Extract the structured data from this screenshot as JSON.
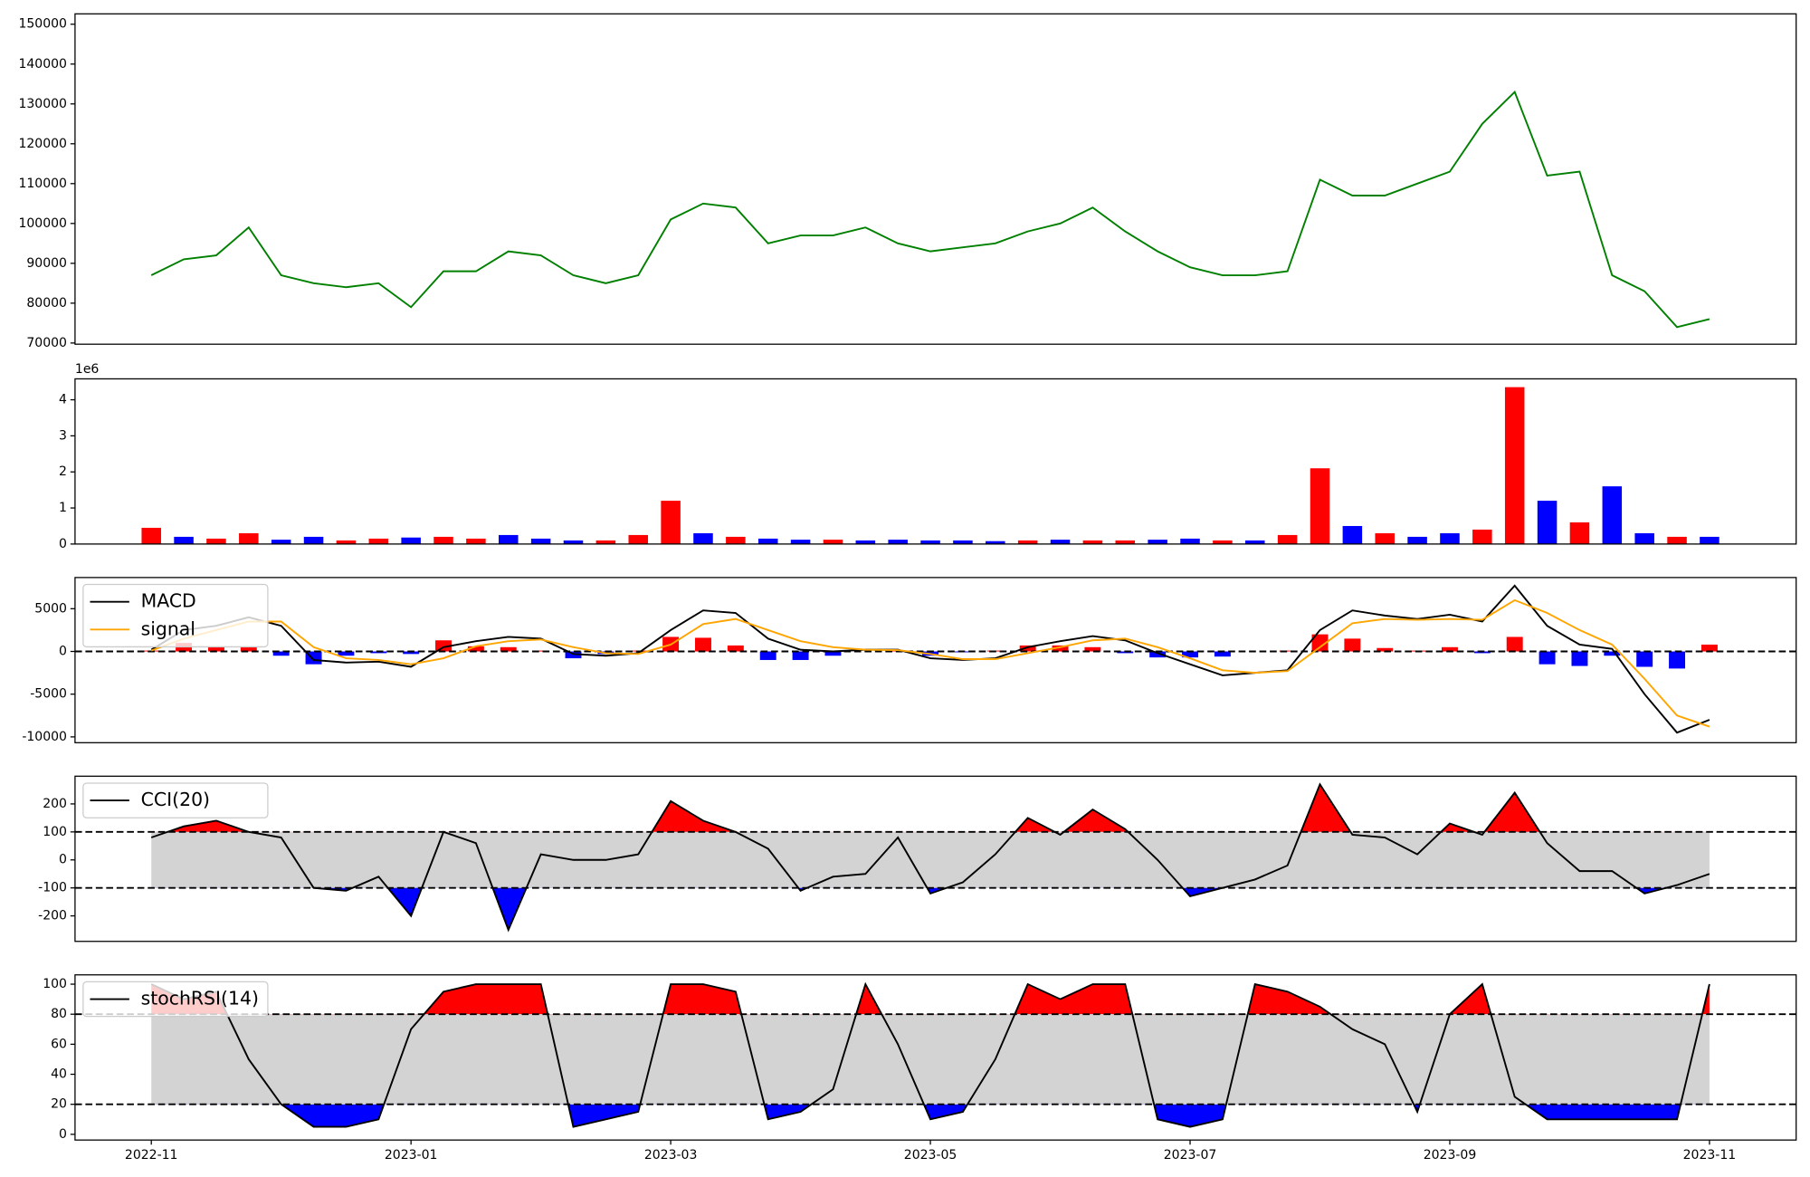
{
  "chart_data": [
    {
      "type": "line",
      "color": "#008000",
      "values": [
        87000,
        91000,
        92000,
        99000,
        87000,
        85000,
        84000,
        85000,
        79000,
        88000,
        88000,
        93000,
        92000,
        87000,
        85000,
        87000,
        101000,
        105000,
        104000,
        95000,
        97000,
        97000,
        99000,
        95000,
        93000,
        94000,
        95000,
        98000,
        100000,
        104000,
        98000,
        93000,
        89000,
        87000,
        87000,
        88000,
        111000,
        107000,
        107000,
        110000,
        113000,
        125000,
        133000,
        112000,
        113000,
        87000,
        83000,
        74000,
        76000
      ],
      "ylim": [
        69700,
        152600
      ],
      "yticks": [
        70000,
        80000,
        90000,
        100000,
        110000,
        120000,
        130000,
        140000,
        150000
      ]
    },
    {
      "type": "bar",
      "offset_label": "1e6",
      "values": [
        450000,
        200000,
        150000,
        300000,
        120000,
        200000,
        100000,
        150000,
        180000,
        200000,
        150000,
        250000,
        150000,
        100000,
        100000,
        250000,
        1200000,
        300000,
        200000,
        150000,
        120000,
        120000,
        100000,
        120000,
        100000,
        100000,
        80000,
        100000,
        120000,
        100000,
        100000,
        120000,
        150000,
        100000,
        100000,
        250000,
        2100000,
        500000,
        300000,
        200000,
        300000,
        400000,
        4350000,
        1200000,
        600000,
        1600000,
        300000,
        200000,
        200000
      ],
      "colors": [
        "#ff0000",
        "#0000ff",
        "#ff0000",
        "#ff0000",
        "#0000ff",
        "#0000ff",
        "#ff0000",
        "#ff0000",
        "#0000ff",
        "#ff0000",
        "#ff0000",
        "#0000ff",
        "#0000ff",
        "#0000ff",
        "#ff0000",
        "#ff0000",
        "#ff0000",
        "#0000ff",
        "#ff0000",
        "#0000ff",
        "#0000ff",
        "#ff0000",
        "#0000ff",
        "#0000ff",
        "#0000ff",
        "#0000ff",
        "#0000ff",
        "#ff0000",
        "#0000ff",
        "#ff0000",
        "#ff0000",
        "#0000ff",
        "#0000ff",
        "#ff0000",
        "#0000ff",
        "#ff0000",
        "#ff0000",
        "#0000ff",
        "#ff0000",
        "#0000ff",
        "#0000ff",
        "#ff0000",
        "#ff0000",
        "#0000ff",
        "#ff0000",
        "#0000ff",
        "#0000ff",
        "#ff0000",
        "#0000ff"
      ],
      "ylim": [
        0,
        4580000
      ],
      "yticks": [
        {
          "value": 0,
          "label": "0"
        },
        {
          "value": 1000000,
          "label": "1"
        },
        {
          "value": 2000000,
          "label": "2"
        },
        {
          "value": 3000000,
          "label": "3"
        },
        {
          "value": 4000000,
          "label": "4"
        }
      ]
    },
    {
      "type": "combo",
      "legend": "upper left",
      "zero_line": 0,
      "series": [
        {
          "name": "MACD",
          "color": "#000000",
          "values": [
            200,
            2500,
            3000,
            4000,
            3000,
            -1000,
            -1300,
            -1200,
            -1800,
            500,
            1200,
            1700,
            1500,
            -300,
            -500,
            -200,
            2500,
            4800,
            4500,
            1500,
            200,
            0,
            200,
            200,
            -800,
            -1000,
            -800,
            500,
            1200,
            1800,
            1300,
            -200,
            -1500,
            -2800,
            -2500,
            -2200,
            2500,
            4800,
            4200,
            3800,
            4300,
            3500,
            7700,
            3000,
            800,
            300,
            -5000,
            -9500,
            -8000
          ]
        },
        {
          "name": "signal",
          "color": "#ffa500",
          "values": [
            100,
            1500,
            2500,
            3500,
            3500,
            500,
            -800,
            -1000,
            -1500,
            -800,
            600,
            1200,
            1400,
            500,
            -200,
            -300,
            800,
            3200,
            3800,
            2500,
            1200,
            500,
            200,
            150,
            -300,
            -900,
            -900,
            -200,
            500,
            1300,
            1500,
            500,
            -800,
            -2200,
            -2500,
            -2300,
            500,
            3300,
            3800,
            3700,
            3800,
            3700,
            6000,
            4500,
            2500,
            800,
            -3200,
            -7500,
            -8800
          ]
        },
        {
          "kind": "bar",
          "up_color": "#ff0000",
          "down_color": "#0000ff",
          "values": [
            100,
            1000,
            500,
            500,
            -500,
            -1500,
            -500,
            -200,
            -300,
            1300,
            600,
            500,
            100,
            -800,
            -300,
            100,
            1700,
            1600,
            700,
            -1000,
            -1000,
            -500,
            0,
            50,
            -500,
            -100,
            100,
            700,
            700,
            500,
            -200,
            -700,
            -700,
            -600,
            0,
            100,
            2000,
            1500,
            400,
            100,
            500,
            -200,
            1700,
            -1500,
            -1700,
            -500,
            -1800,
            -2000,
            800
          ]
        }
      ],
      "ylim": [
        -10680,
        8650
      ],
      "yticks": [
        -10000,
        -5000,
        0,
        5000
      ]
    },
    {
      "type": "band",
      "legend": "upper left",
      "levels": [
        100,
        -100
      ],
      "band_color": "#d3d3d3",
      "over_color": "#ff0000",
      "under_color": "#0000ff",
      "series": [
        {
          "name": "CCI(20)",
          "color": "#000000",
          "values": [
            80,
            120,
            140,
            100,
            80,
            -100,
            -110,
            -60,
            -200,
            100,
            60,
            -250,
            20,
            0,
            0,
            20,
            210,
            140,
            100,
            40,
            -110,
            -60,
            -50,
            80,
            -120,
            -80,
            20,
            150,
            90,
            180,
            110,
            0,
            -130,
            -100,
            -70,
            -20,
            270,
            90,
            80,
            20,
            130,
            90,
            240,
            60,
            -40,
            -40,
            -120,
            -90,
            -50
          ]
        }
      ],
      "ylim": [
        -291,
        299
      ],
      "yticks": [
        -200,
        -100,
        0,
        100,
        200
      ]
    },
    {
      "type": "band",
      "legend": "upper left",
      "levels": [
        80,
        20
      ],
      "band_color": "#d3d3d3",
      "over_color": "#ff0000",
      "under_color": "#0000ff",
      "series": [
        {
          "name": "stochRSI(14)",
          "color": "#000000",
          "values": [
            100,
            90,
            95,
            50,
            20,
            5,
            5,
            10,
            70,
            95,
            100,
            100,
            100,
            5,
            10,
            15,
            100,
            100,
            95,
            10,
            15,
            30,
            100,
            60,
            10,
            15,
            50,
            100,
            90,
            100,
            100,
            10,
            5,
            10,
            100,
            95,
            85,
            70,
            60,
            15,
            80,
            100,
            25,
            10,
            10,
            10,
            10,
            10,
            100
          ]
        }
      ],
      "ylim": [
        -3.8,
        106.2
      ],
      "yticks": [
        0,
        20,
        40,
        60,
        80,
        100
      ],
      "categories": [
        "2022-11",
        null,
        null,
        null,
        null,
        null,
        null,
        null,
        "2023-01",
        null,
        null,
        null,
        null,
        null,
        null,
        null,
        "2023-03",
        null,
        null,
        null,
        null,
        null,
        null,
        null,
        "2023-05",
        null,
        null,
        null,
        null,
        null,
        null,
        null,
        "2023-07",
        null,
        null,
        null,
        null,
        null,
        null,
        null,
        "2023-09",
        null,
        null,
        null,
        null,
        null,
        null,
        null,
        "2023-11"
      ],
      "xlim": [
        -2.35,
        50.67
      ]
    }
  ]
}
